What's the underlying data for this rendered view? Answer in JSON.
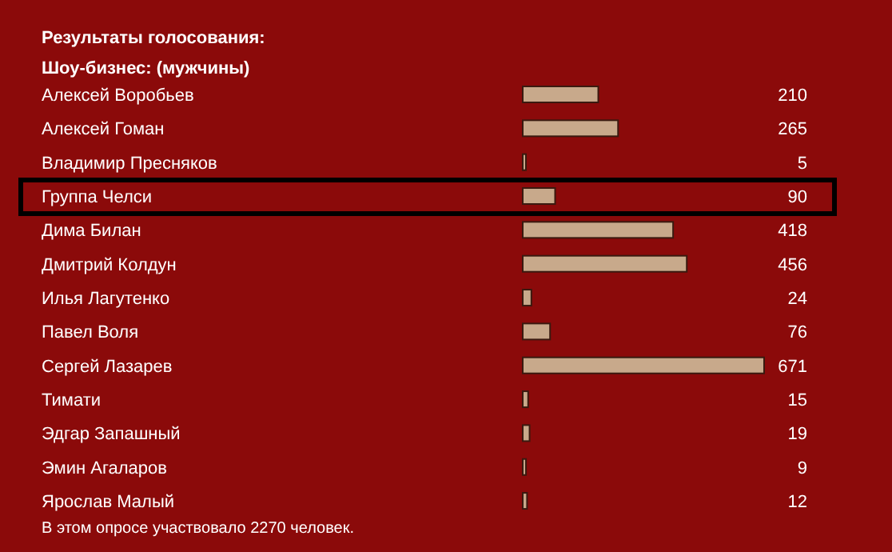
{
  "chart_data": {
    "type": "bar",
    "orientation": "horizontal",
    "title": "Результаты голосования:",
    "subtitle": "Шоу-бизнес: (мужчины)",
    "categories": [
      "Алексей Воробьев",
      "Алексей Гоман",
      "Владимир Пресняков",
      "Группа Челси",
      "Дима Билан",
      "Дмитрий Колдун",
      "Илья Лагутенко",
      "Павел Воля",
      "Сергей Лазарев",
      "Тимати",
      "Эдгар Запашный",
      "Эмин Агаларов",
      "Ярослав Малый"
    ],
    "values": [
      210,
      265,
      5,
      90,
      418,
      456,
      24,
      76,
      671,
      15,
      19,
      9,
      12
    ],
    "color": "#c8a98b",
    "data_labels": true,
    "annotations": [
      "В этом опросе участвовало 2270 человек."
    ]
  }
}
